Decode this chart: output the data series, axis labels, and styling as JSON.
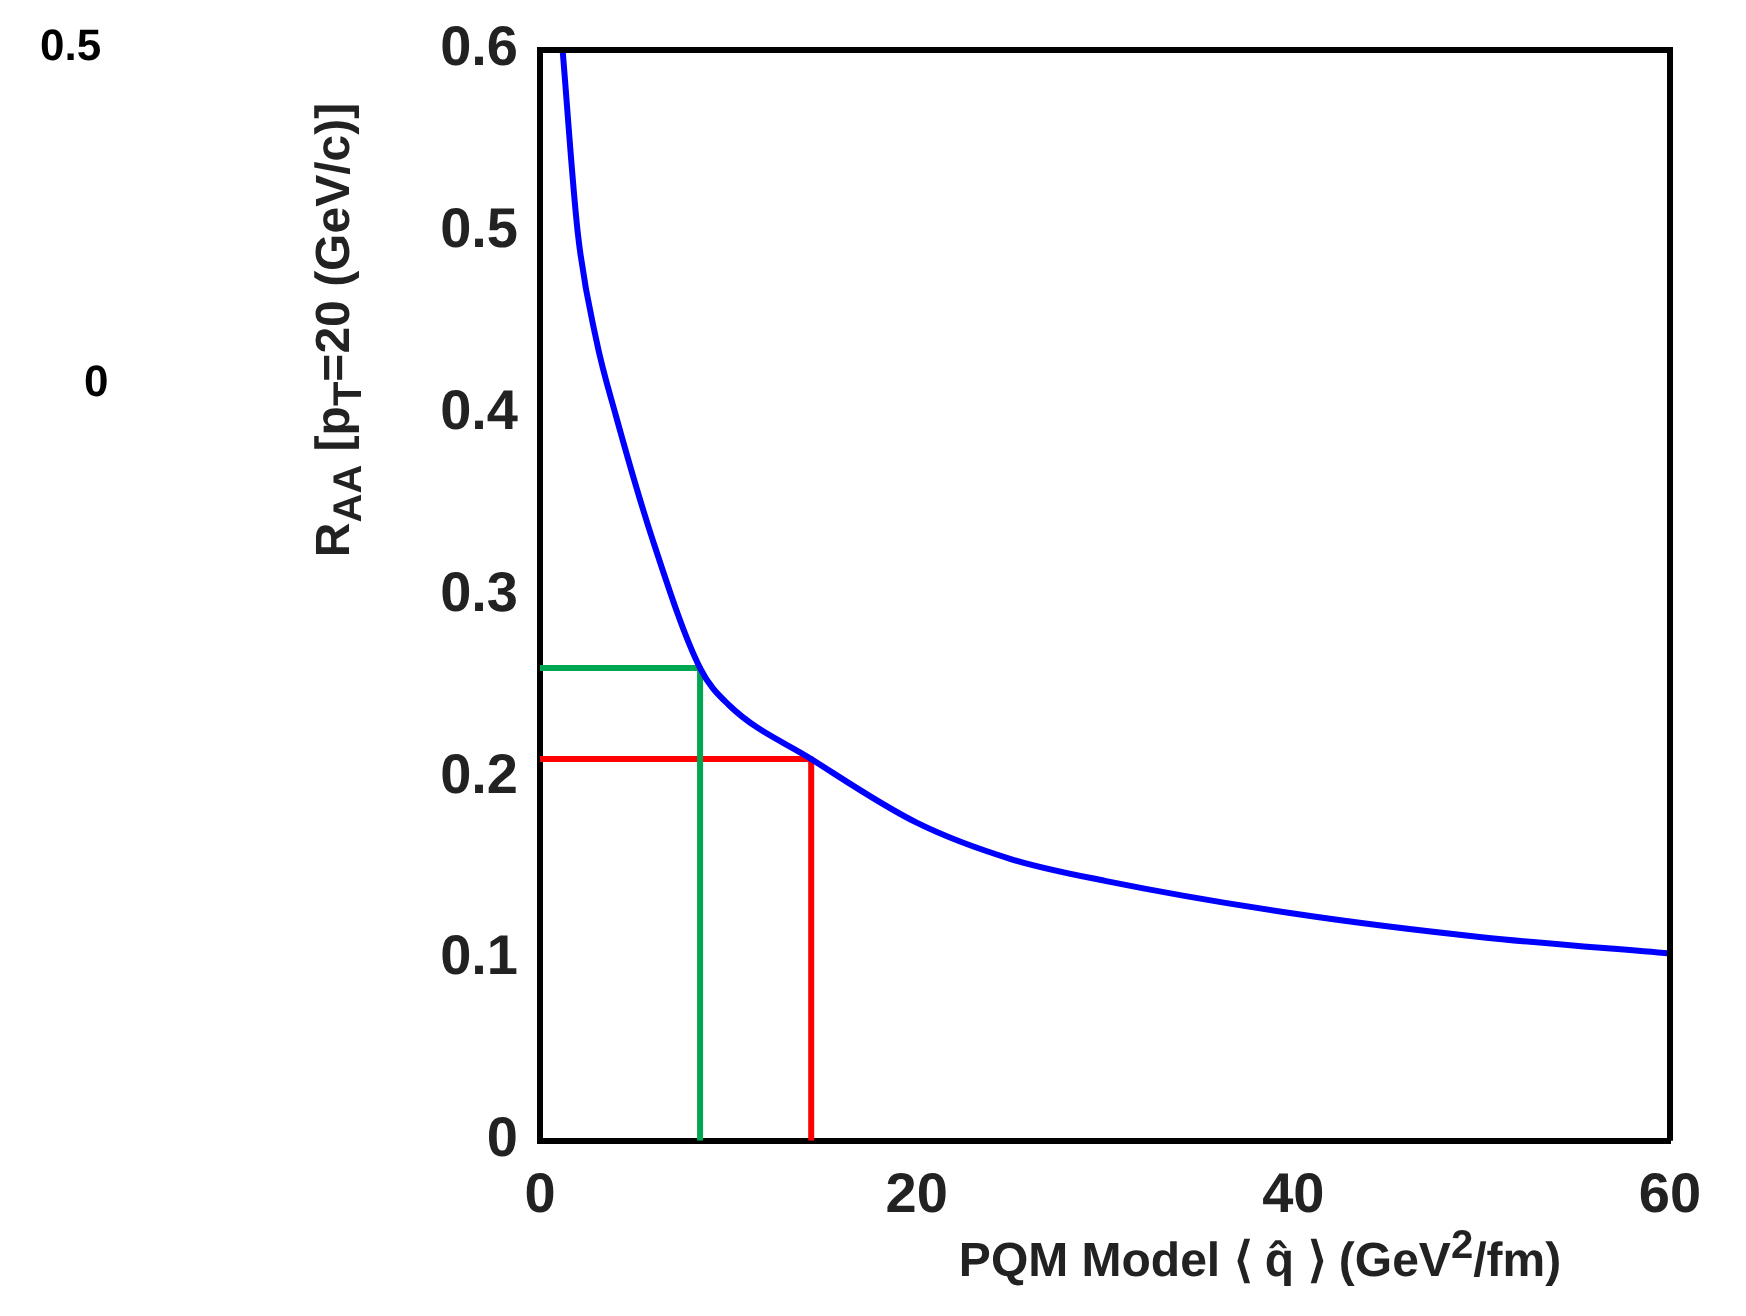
{
  "chart_data": {
    "type": "line",
    "xlabel": "PQM Model ⟨ q̂ ⟩ (GeV$^{2}$/fm)",
    "ylabel": "R$_{AA}$ [p$_{T}$=20 (GeV/c)]",
    "annotations": [
      "0.5",
      "0"
    ],
    "xlim": [
      0,
      60
    ],
    "xticks": [
      0,
      20,
      40,
      60
    ],
    "ylim": [
      0,
      0.6
    ],
    "yticks": [
      0,
      0.1,
      0.2,
      0.3,
      0.4,
      0.5,
      0.6
    ],
    "grid": false,
    "legend": false,
    "marker": "none",
    "line_style": "solid",
    "series": [
      {
        "color": "#0000ff",
        "x": [
          1.2,
          2,
          3,
          4,
          6,
          8.5,
          10,
          14.4,
          20,
          25,
          30,
          40,
          50,
          60
        ],
        "values": [
          0.6,
          0.5,
          0.44,
          0.4,
          0.33,
          0.26,
          0.24,
          0.21,
          0.175,
          0.155,
          0.143,
          0.125,
          0.112,
          0.103
        ]
      },
      {
        "color": "#00a651",
        "x": [
          0,
          8.5,
          8.5
        ],
        "values": [
          0.26,
          0.26,
          0
        ]
      },
      {
        "color": "#ff0000",
        "x": [
          0,
          14.4,
          14.4
        ],
        "values": [
          0.21,
          0.21,
          0
        ]
      }
    ]
  }
}
